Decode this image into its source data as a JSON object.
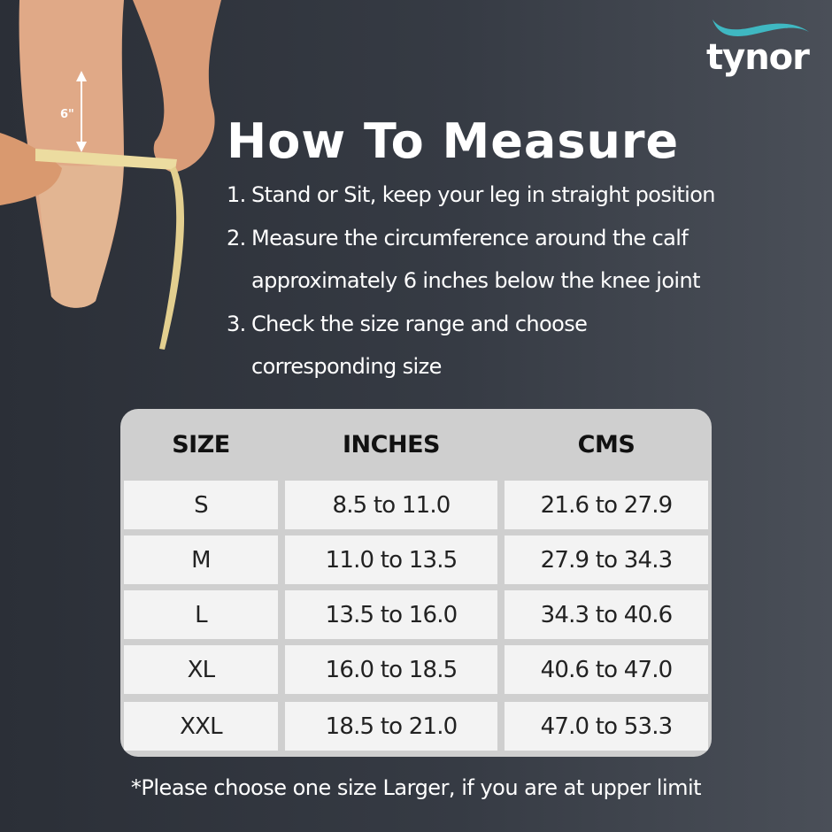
{
  "brand": {
    "name": "tynor",
    "accent": "#3fb8c2"
  },
  "illustration": {
    "measure_label": "6\""
  },
  "title": "How To Measure",
  "steps": [
    {
      "num": "1.",
      "lines": [
        "Stand or Sit, keep your leg in straight position"
      ]
    },
    {
      "num": "2.",
      "lines": [
        "Measure the circumference around the calf",
        "approximately 6 inches below the knee joint"
      ]
    },
    {
      "num": "3.",
      "lines": [
        "Check the size range and choose",
        "corresponding size"
      ]
    }
  ],
  "table": {
    "headers": [
      "SIZE",
      "INCHES",
      "CMS"
    ],
    "rows": [
      [
        "S",
        "8.5 to 11.0",
        "21.6 to 27.9"
      ],
      [
        "M",
        "11.0 to 13.5",
        "27.9 to 34.3"
      ],
      [
        "L",
        "13.5 to 16.0",
        "34.3 to 40.6"
      ],
      [
        "XL",
        "16.0 to 18.5",
        "40.6 to 47.0"
      ],
      [
        "XXL",
        "18.5 to 21.0",
        "47.0 to 53.3"
      ]
    ]
  },
  "note": "*Please choose one size Larger, if you are at upper limit"
}
